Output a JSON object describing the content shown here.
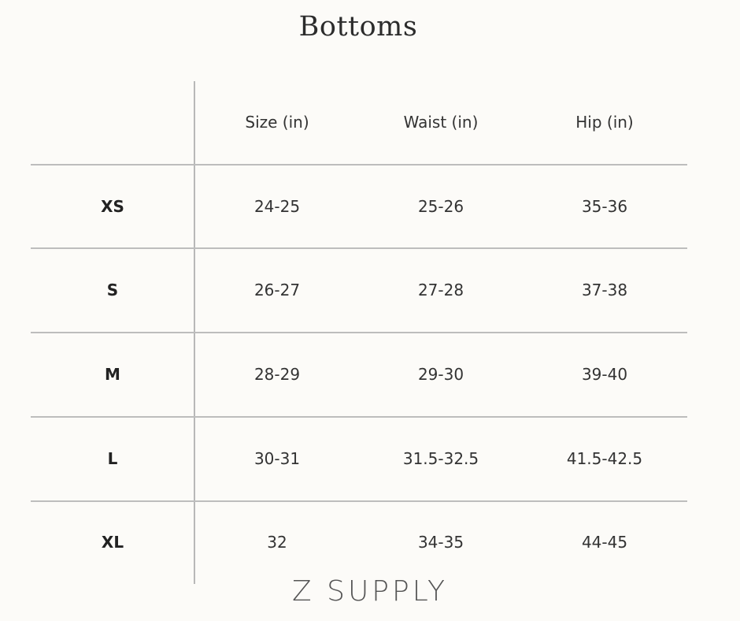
{
  "title": "Bottoms",
  "table": {
    "headers": [
      "",
      "Size (in)",
      "Waist (in)",
      "Hip (in)"
    ],
    "rows": [
      {
        "label": "XS",
        "size": "24-25",
        "waist": "25-26",
        "hip": "35-36"
      },
      {
        "label": "S",
        "size": "26-27",
        "waist": "27-28",
        "hip": "37-38"
      },
      {
        "label": "M",
        "size": "28-29",
        "waist": "29-30",
        "hip": "39-40"
      },
      {
        "label": "L",
        "size": "30-31",
        "waist": "31.5-32.5",
        "hip": "41.5-42.5"
      },
      {
        "label": "XL",
        "size": "32",
        "waist": "34-35",
        "hip": "44-45"
      }
    ]
  },
  "brand": "Z SUPPLY"
}
